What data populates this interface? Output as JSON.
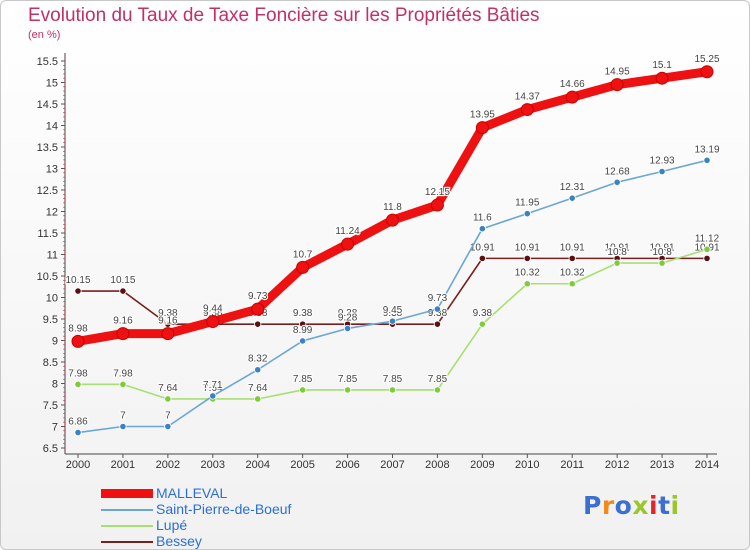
{
  "title": "Evolution du Taux de Taxe Foncière sur les Propriétés Bâties",
  "unit_label": "(en %)",
  "logo": {
    "text": "Proxiti",
    "letter_colors": [
      "#3b6fd0",
      "#f08a1a",
      "#3b6fd0",
      "#9bc62a",
      "#e2252b",
      "#3b6fd0",
      "#9bc62a"
    ]
  },
  "chart_data": {
    "type": "line",
    "title": "Evolution du Taux de Taxe Foncière sur les Propriétés Bâties",
    "ylabel": "(en %)",
    "xlabel": "",
    "ylim": [
      6.5,
      15.5
    ],
    "yticks": [
      "6.5",
      "7",
      "7.5",
      "8",
      "8.5",
      "9",
      "9.5",
      "10",
      "10.5",
      "11",
      "11.5",
      "12",
      "12.5",
      "13",
      "13.5",
      "14",
      "14.5",
      "15",
      "15.5"
    ],
    "categories": [
      "2000",
      "2001",
      "2002",
      "2003",
      "2004",
      "2005",
      "2006",
      "2007",
      "2008",
      "2009",
      "2010",
      "2011",
      "2012",
      "2013",
      "2014"
    ],
    "series": [
      {
        "name": "Bessey",
        "color": "#7a1f1f",
        "marker": "#5a1010",
        "thick": false,
        "values": [
          10.15,
          10.15,
          9.38,
          9.38,
          9.38,
          9.38,
          9.38,
          9.38,
          9.38,
          10.91,
          10.91,
          10.91,
          10.91,
          10.91,
          10.91
        ],
        "labels": [
          "10.15",
          "10.15",
          "9.38",
          "9.38",
          "9.38",
          "9.38",
          "9.38",
          "9.38",
          "9.38",
          "10.91",
          "10.91",
          "10.91",
          "10.91",
          "10.91",
          "10.91"
        ]
      },
      {
        "name": "Lupé",
        "color": "#a6e070",
        "marker": "#7fcb3a",
        "thick": false,
        "values": [
          7.98,
          7.98,
          7.64,
          7.64,
          7.64,
          7.85,
          7.85,
          7.85,
          7.85,
          9.38,
          10.32,
          10.32,
          10.8,
          10.8,
          11.12
        ],
        "labels": [
          "7.98",
          "7.98",
          "7.64",
          "7.64",
          "7.64",
          "7.85",
          "7.85",
          "7.85",
          "7.85",
          "9.38",
          "10.32",
          "10.32",
          "10.8",
          "10.8",
          "11.12"
        ]
      },
      {
        "name": "Saint-Pierre-de-Boeuf",
        "color": "#6aa6d6",
        "marker": "#3b82c4",
        "thick": false,
        "values": [
          6.86,
          7.0,
          7.0,
          7.71,
          8.32,
          8.99,
          9.28,
          9.45,
          9.73,
          11.6,
          11.95,
          12.31,
          12.68,
          12.93,
          13.19
        ],
        "labels": [
          "6.86",
          "7",
          "7",
          "7.71",
          "8.32",
          "8.99",
          "9.28",
          "9.45",
          "9.73",
          "11.6",
          "11.95",
          "12.31",
          "12.68",
          "12.93",
          "13.19"
        ]
      },
      {
        "name": "MALLEVAL",
        "color": "#ee1111",
        "marker": "#ee1111",
        "thick": true,
        "values": [
          8.98,
          9.16,
          9.16,
          9.44,
          9.73,
          10.7,
          11.24,
          11.8,
          12.15,
          13.95,
          14.37,
          14.66,
          14.95,
          15.1,
          15.25
        ],
        "labels": [
          "8.98",
          "9.16",
          "9.16",
          "9.44",
          "9.73",
          "10.7",
          "11.24",
          "11.8",
          "12.15",
          "13.95",
          "14.37",
          "14.66",
          "14.95",
          "15.1",
          "15.25"
        ]
      }
    ],
    "legend": [
      "MALLEVAL",
      "Saint-Pierre-de-Boeuf",
      "Lupé",
      "Bessey"
    ],
    "legend_position": "bottom-left",
    "grid": false
  }
}
